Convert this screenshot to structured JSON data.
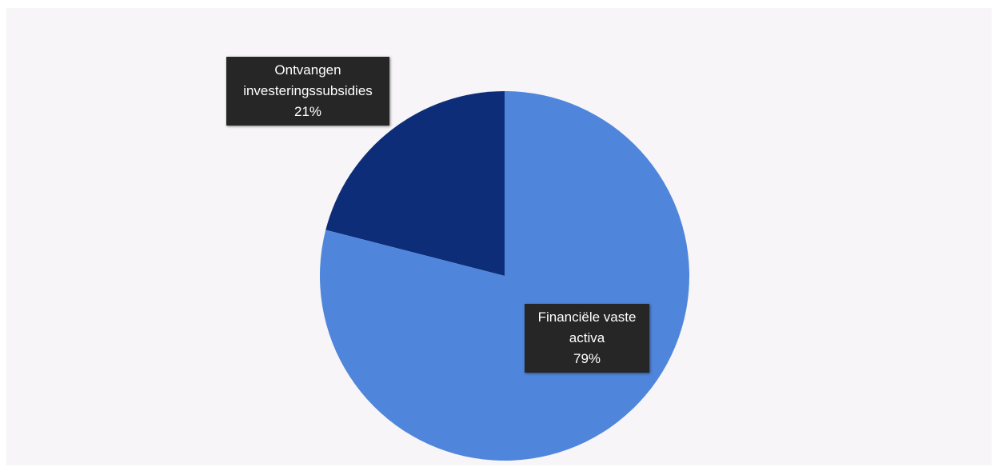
{
  "chart_data": {
    "type": "pie",
    "title": "",
    "start_angle_deg": 0,
    "direction": "counterclockwise",
    "slices": [
      {
        "name": "Ontvangen investeringssubsidies",
        "label_lines": [
          "Ontvangen",
          "investeringssubsidies"
        ],
        "value": 21,
        "percent_label": "21%",
        "color": "#0e2d78"
      },
      {
        "name": "Financiële vaste activa",
        "label_lines": [
          "Financiële vaste",
          "activa"
        ],
        "value": 79,
        "percent_label": "79%",
        "color": "#4f86db"
      }
    ],
    "legend": "none"
  }
}
